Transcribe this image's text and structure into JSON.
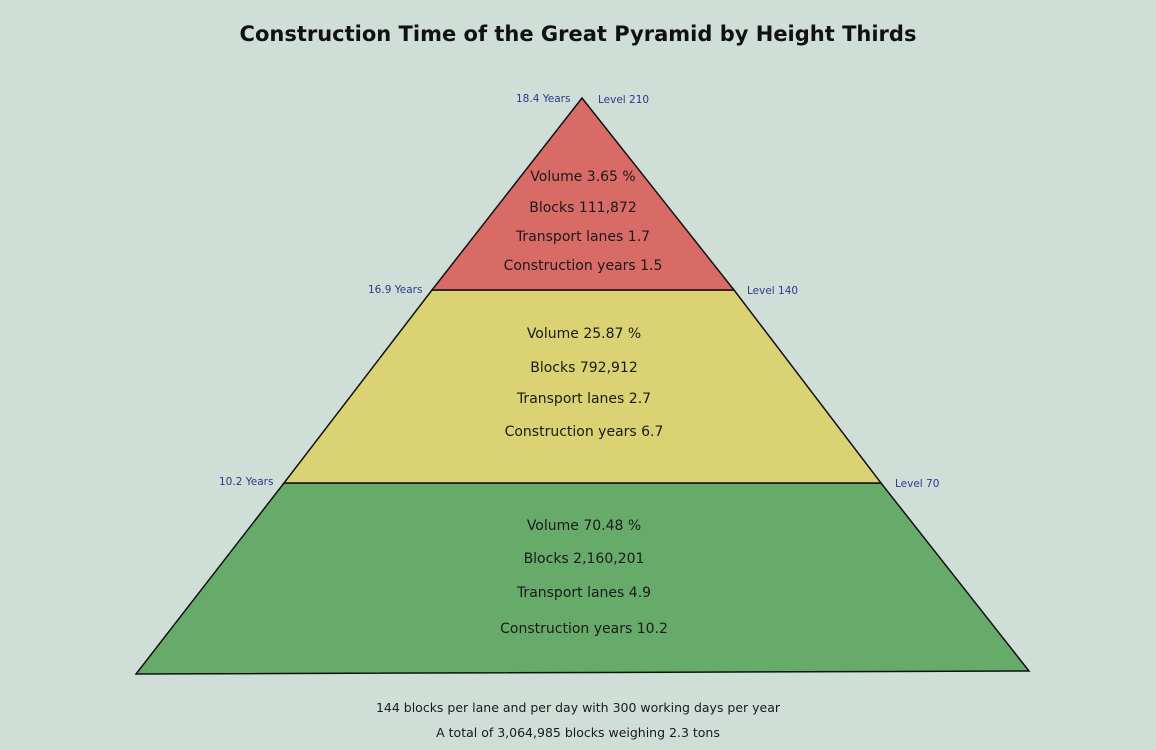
{
  "title": "Construction Time of the Great Pyramid by Height Thirds",
  "colors": {
    "top": "#d96b67",
    "middle": "#dbd274",
    "bottom": "#67ab6a",
    "background": "#cfdfd8"
  },
  "levels": [
    {
      "name": "top",
      "left_label": "18.4 Years",
      "right_label": "Level 210",
      "volume": "Volume 3.65 %",
      "blocks": "Blocks 111,872",
      "lanes": "Transport lanes 1.7",
      "years": "Construction years 1.5"
    },
    {
      "name": "middle",
      "left_label": "16.9 Years",
      "right_label": "Level 140",
      "volume": "Volume 25.87 %",
      "blocks": "Blocks 792,912",
      "lanes": "Transport lanes 2.7",
      "years": "Construction years 6.7"
    },
    {
      "name": "bottom",
      "left_label": "10.2 Years",
      "right_label": "Level 70",
      "volume": "Volume 70.48 %",
      "blocks": "Blocks 2,160,201",
      "lanes": "Transport lanes 4.9",
      "years": "Construction years 10.2"
    }
  ],
  "footer": {
    "line1": "144  blocks per lane and per day with 300 working days per year",
    "line2": "A total of 3,064,985 blocks weighing 2.3 tons"
  }
}
